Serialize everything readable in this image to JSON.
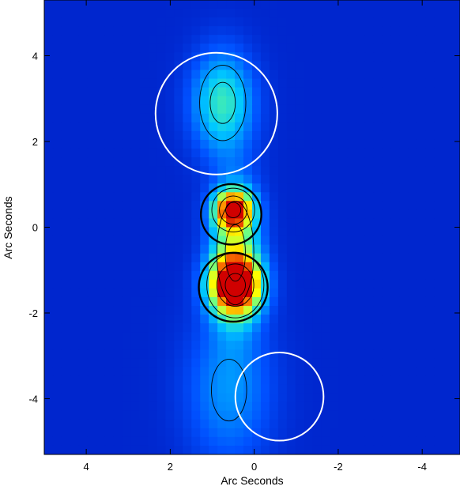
{
  "chart_data": {
    "type": "heatmap",
    "title": "",
    "xlabel": "Arc Seconds",
    "ylabel": "Arc Seconds",
    "xlim": [
      5.0,
      -4.9
    ],
    "ylim": [
      -5.3,
      5.3
    ],
    "x_ticks": [
      4,
      2,
      0,
      -2,
      -4
    ],
    "y_ticks": [
      4,
      2,
      0,
      -2,
      -4
    ],
    "x_tick_labels": [
      "4",
      "2",
      "0",
      "-2",
      "-4"
    ],
    "y_tick_labels": [
      "4",
      "2",
      "0",
      "-2",
      "-4"
    ],
    "colormap": [
      "#0000a0",
      "#0050ff",
      "#00c8ff",
      "#60ff90",
      "#ffff00",
      "#ff8000",
      "#d00000"
    ],
    "peaks": [
      {
        "x": 0.45,
        "y": -1.35,
        "amplitude": 1.0,
        "sigma_x": 0.4,
        "sigma_y": 0.45
      },
      {
        "x": 0.5,
        "y": 0.4,
        "amplitude": 0.85,
        "sigma_x": 0.3,
        "sigma_y": 0.3
      },
      {
        "x": 0.45,
        "y": -0.6,
        "amplitude": 0.45,
        "sigma_x": 0.4,
        "sigma_y": 1.1
      },
      {
        "x": 0.75,
        "y": 2.9,
        "amplitude": 0.35,
        "sigma_x": 0.5,
        "sigma_y": 0.8
      },
      {
        "x": 0.6,
        "y": -3.8,
        "amplitude": 0.18,
        "sigma_x": 0.7,
        "sigma_y": 1.2
      }
    ],
    "circles": [
      {
        "x": 0.9,
        "y": 2.65,
        "r": 1.45,
        "color": "#ffffff"
      },
      {
        "x": 0.55,
        "y": 0.3,
        "r": 0.72,
        "color": "#000000"
      },
      {
        "x": 0.5,
        "y": -1.4,
        "r": 0.82,
        "color": "#000000"
      },
      {
        "x": -0.6,
        "y": -3.95,
        "r": 1.05,
        "color": "#ffffff"
      }
    ]
  }
}
